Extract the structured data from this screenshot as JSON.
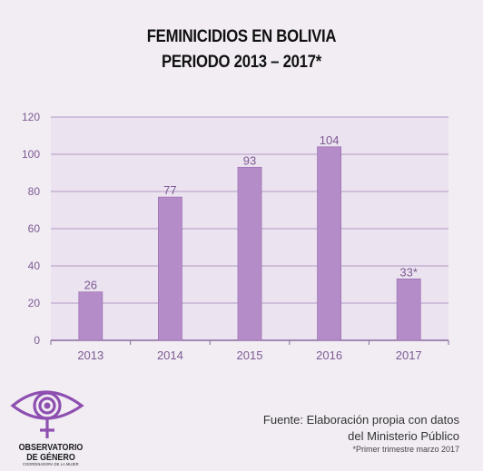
{
  "title_line1": "FEMINICIDIOS EN BOLIVIA",
  "title_line2": "PERIODO 2013 – 2017*",
  "chart_data": {
    "type": "bar",
    "categories": [
      "2013",
      "2014",
      "2015",
      "2016",
      "2017"
    ],
    "values": [
      26,
      77,
      93,
      104,
      33
    ],
    "data_labels": [
      "26",
      "77",
      "93",
      "104",
      "33*"
    ],
    "ylim": [
      0,
      120
    ],
    "yticks": [
      0,
      20,
      40,
      60,
      80,
      100,
      120
    ],
    "grid": true,
    "colors": {
      "bar": "#b48cc8",
      "bar_edge": "#9f74b6",
      "grid": "#b39ac4",
      "axis": "#8a6aa0",
      "tick_text": "#7d5a94",
      "plot_bg": "#ebe3ef"
    }
  },
  "logo": {
    "name_line1": "OBSERVATORIO",
    "name_line2": "DE GÉNERO",
    "tagline": "COORDINADORA DE LA MUJER",
    "color": "#8e4fb0"
  },
  "source": {
    "line1": "Fuente: Elaboración propia con datos",
    "line2": "del Ministerio Público",
    "note": "*Primer trimestre marzo 2017"
  }
}
